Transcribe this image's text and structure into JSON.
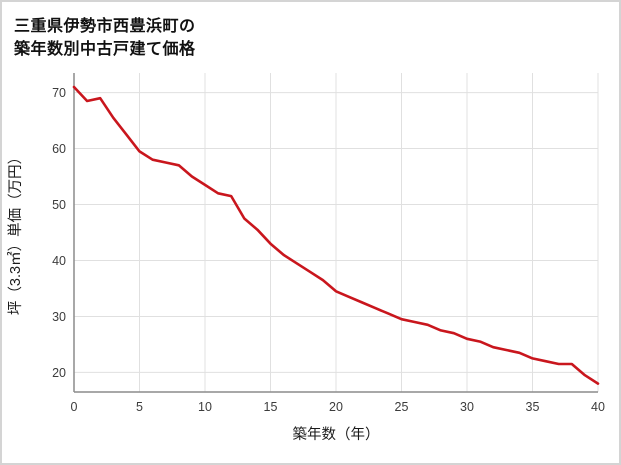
{
  "chart_data": {
    "type": "line",
    "title_line1": "三重県伊勢市西豊浜町の",
    "title_line2": "築年数別中古戸建て価格",
    "xlabel": "築年数（年）",
    "ylabel": "坪（3.3㎡）単価（万円）",
    "x": [
      0,
      1,
      2,
      3,
      4,
      5,
      6,
      7,
      8,
      9,
      10,
      11,
      12,
      13,
      14,
      15,
      16,
      17,
      18,
      19,
      20,
      21,
      22,
      23,
      24,
      25,
      26,
      27,
      28,
      29,
      30,
      31,
      32,
      33,
      34,
      35,
      36,
      37,
      38,
      39,
      40
    ],
    "y": [
      71,
      68.5,
      69,
      65.5,
      62.5,
      59.5,
      58,
      57.5,
      57,
      55,
      53.5,
      52,
      51.5,
      47.5,
      45.5,
      43,
      41,
      39.5,
      38,
      36.5,
      34.5,
      33.5,
      32.5,
      31.5,
      30.5,
      29.5,
      29,
      28.5,
      27.5,
      27,
      26,
      25.5,
      24.5,
      24,
      23.5,
      22.5,
      22,
      21.5,
      21.5,
      19.5,
      18
    ],
    "xlim": [
      0,
      40
    ],
    "ylim": [
      16.5,
      73.5
    ],
    "xticks": [
      0,
      5,
      10,
      15,
      20,
      25,
      30,
      35,
      40
    ],
    "yticks": [
      20,
      30,
      40,
      50,
      60,
      70
    ],
    "grid": true,
    "legend": "none",
    "line_color": "#c9161d",
    "grid_color": "#e0e0e0",
    "axis_color": "#8c8c8c"
  }
}
